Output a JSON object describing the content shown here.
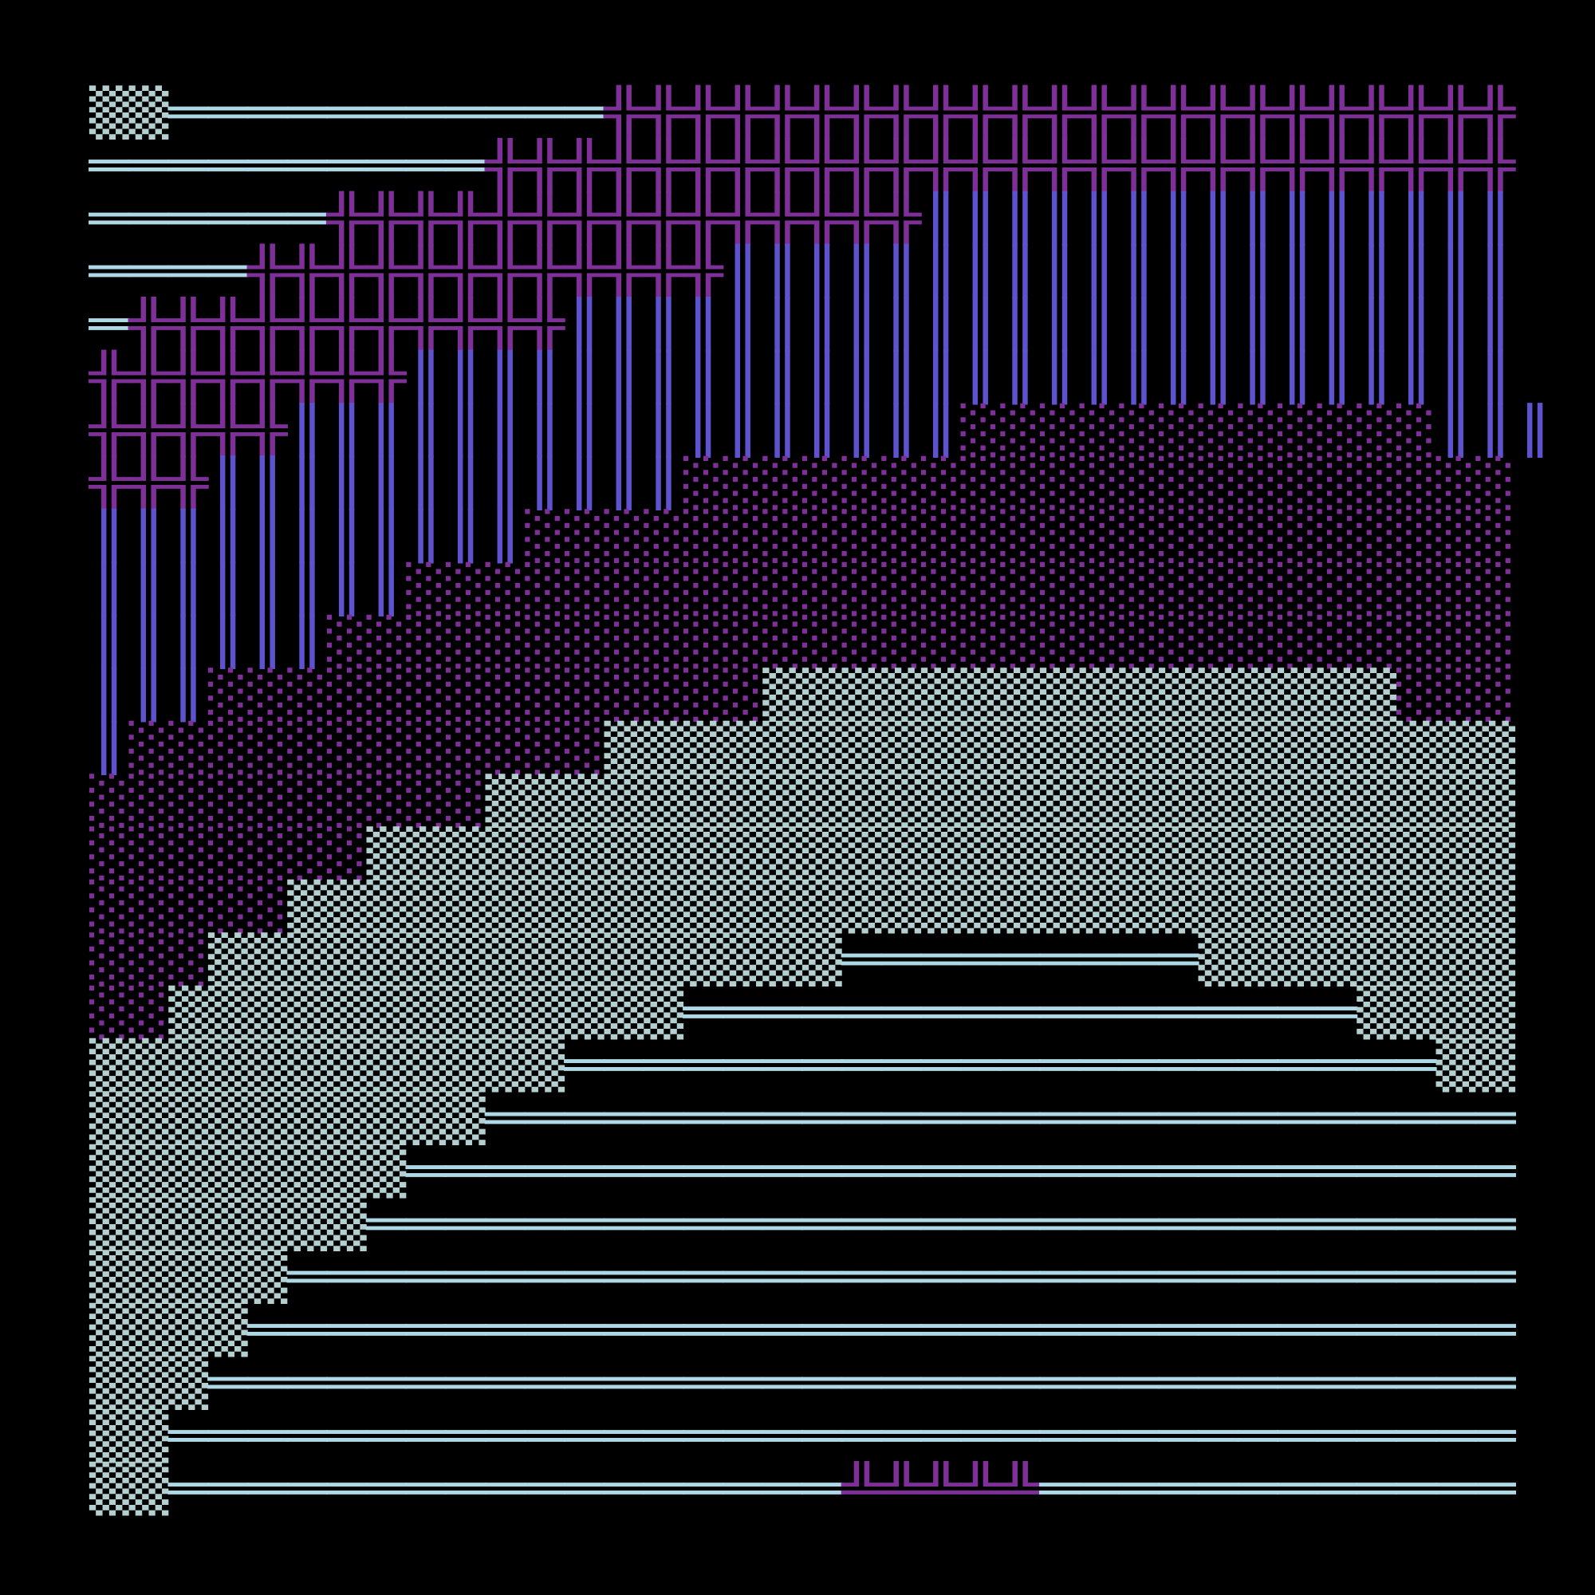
{
  "rows": [
    "▒▒═══════════╬╬╬╬╬╬╬╬╬╬╬╬╬╬╬╬╬╬╬╬╬╬╬",
    "══════════╬╬╬╬╬╬╬╬╬╬╬╬╬╬╬╬╬╬╬╬╬╬╬╬╬╬",
    "══════╬╬╬╬╬╬╬╬╬╬╬╬╬╬╬║║║║║║║║║║║║║║║",
    "════╬╬╬╬╬╬╬╬╬╬╬╬║║║║║║║║║║║║║║║║║║║║",
    "═╬╬╬╬╬╬╬╬╬╬╬║║║║║║║║║║║║║║║║║║║║║║║║",
    "╬╬╬╬╬╬╬╬║║║║║║║║║║║║║║║║║║║║║║║║║║║║",
    "╬╬╬╬╬║║║║║║║║║║║║║║║║║░░░░░░░░░░░░║║║",
    "╬╬╬║║║║║║║║║║║║░░░░░░░░░░░░░░░░░░░░░",
    "║║║║║║║║║║║░░░░░░░░░░░░░░░░░░░░░░░░░",
    "║║║║║║║║░░░░░░░░░░░░░░░░░░░░░░░░░░░░",
    "║║║║║║░░░░░░░░░░░░░░░░░░░░░░░░░░░░░░",
    "║║║░░░░░░░░░░░░░░▒▒▒▒▒▒▒▒▒▒▒▒▒▒▒▒░░░",
    "║░░░░░░░░░░░░▒▒▒▒▒▒▒▒▒▒▒▒▒▒▒▒▒▒▒▒▒▒▒",
    "░░░░░░░░░░▒▒▒▒▒▒▒▒▒▒▒▒▒▒▒▒▒▒▒▒▒▒▒▒▒▒",
    "░░░░░░░▒▒▒▒▒▒▒▒▒▒▒▒▒▒▒▒▒▒▒▒▒▒▒▒▒▒▒▒▒",
    "░░░░░▒▒▒▒▒▒▒▒▒▒▒▒▒▒▒▒▒▒▒▒▒▒▒▒▒▒▒▒▒▒▒",
    "░░░▒▒▒▒▒▒▒▒▒▒▒▒▒▒▒▒═════════▒▒▒▒▒▒▒▒",
    "░░▒▒▒▒▒▒▒▒▒▒▒▒▒═════════════════▒▒▒▒",
    "▒▒▒▒▒▒▒▒▒▒▒▒══════════════════════▒▒",
    "▒▒▒▒▒▒▒▒▒▒══════════════════════════",
    "▒▒▒▒▒▒▒▒════════════════════════════",
    "▒▒▒▒▒▒▒═════════════════════════════",
    "▒▒▒▒▒═══════════════════════════════",
    "▒▒▒▒════════════════════════════════",
    "▒▒▒═════════════════════════════════",
    "▒▒══════════════════════════════════",
    "▒▒═════════════════╩╩╩╩╩════════════"
  ],
  "colors": {
    "═": "#add8e6",
    "╬": "#7e2f98",
    "║": "#5f52cf",
    "░": "#7e2f98",
    "▒": "#b4cfcf",
    "╩": "#7e2f98"
  }
}
